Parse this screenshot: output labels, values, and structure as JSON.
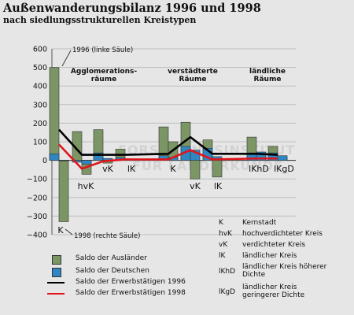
{
  "chart_data": {
    "type": "bar",
    "title": "Außenwanderungsbilanz 1996 und 1998",
    "subtitle": "nach siedlungsstrukturellen Kreistypen",
    "ylim": [
      -400,
      600
    ],
    "yticks": [
      600,
      500,
      400,
      300,
      200,
      100,
      0,
      -100,
      -200,
      -300,
      -400
    ],
    "ytick_labels": [
      "600",
      "500",
      "400",
      "300",
      "200",
      "100",
      "0",
      "−100",
      "−200",
      "−300",
      "−400"
    ],
    "categories": [
      "K",
      "hvK",
      "vK",
      "lK",
      "K",
      "vK",
      "lK",
      "lKhD",
      "lKgD"
    ],
    "category_labels_drawn": [
      "K",
      "hvK",
      "vK",
      "lK",
      "K",
      "vK",
      "lK",
      "lKhD",
      "lKgD"
    ],
    "groups": [
      {
        "name": "Agglomerations-räume",
        "label_line1": "Agglomerations-",
        "label_line2": "räume",
        "categories": [
          0,
          1,
          2,
          3
        ]
      },
      {
        "name": "verstädterte Räume",
        "label_line1": "verstädterte",
        "label_line2": "Räume",
        "categories": [
          4,
          5,
          6
        ]
      },
      {
        "name": "ländliche Räume",
        "label_line1": "ländliche",
        "label_line2": "Räume",
        "categories": [
          7,
          8
        ]
      }
    ],
    "series": [
      {
        "name": "Saldo der Ausländer",
        "kind": "bar",
        "year": 1996,
        "values": [
          500,
          155,
          165,
          60,
          180,
          205,
          110,
          125,
          75
        ]
      },
      {
        "name": "Saldo der Ausländer",
        "kind": "bar",
        "year": 1998,
        "values": [
          -330,
          -75,
          -15,
          5,
          100,
          -100,
          -90,
          20,
          20
        ]
      },
      {
        "name": "Saldo der Deutschen",
        "kind": "bar",
        "year": 1996,
        "values": [
          35,
          -10,
          40,
          15,
          25,
          75,
          65,
          40,
          40
        ]
      },
      {
        "name": "Saldo der Deutschen",
        "kind": "bar",
        "year": 1998,
        "values": [
          0,
          -20,
          10,
          5,
          15,
          55,
          20,
          45,
          25
        ]
      },
      {
        "name": "Saldo der Erwerbstätigen 1996",
        "kind": "line",
        "values": [
          165,
          30,
          30,
          30,
          35,
          125,
          35,
          35,
          30
        ]
      },
      {
        "name": "Saldo der Erwerbstätigen 1998",
        "kind": "line",
        "values": [
          85,
          -45,
          -5,
          5,
          5,
          55,
          5,
          10,
          10
        ]
      }
    ],
    "annotations": {
      "top": "1996 (linke Säule)",
      "bottom": "1998 (rechte Säule)"
    },
    "colors": {
      "auslaender": "#7b9565",
      "deutsche": "#2f86c2",
      "erw1996": "#000000",
      "erw1998": "#e0141a"
    },
    "grid": true
  },
  "legend": {
    "items": [
      {
        "label": "Saldo der Ausländer",
        "symbol": "square",
        "color": "#7b9565"
      },
      {
        "label": "Saldo der Deutschen",
        "symbol": "square",
        "color": "#2f86c2"
      },
      {
        "label": "Saldo der Erwerbstätigen 1996",
        "symbol": "line",
        "color": "#000000"
      },
      {
        "label": "Saldo der Erwerbstätigen 1998",
        "symbol": "line",
        "color": "#e0141a"
      }
    ]
  },
  "abbreviations": [
    {
      "code": "K",
      "text": "Kernstadt"
    },
    {
      "code": "hvK",
      "text": "hochverdichteter Kreis"
    },
    {
      "code": "vK",
      "text": "verdichteter Kreis"
    },
    {
      "code": "lK",
      "text": "ländlicher Kreis"
    },
    {
      "code": "lKhD",
      "text": "ländlicher Kreis höherer Dichte"
    },
    {
      "code": "lKgD",
      "text": "ländlicher Kreis geringerer Dichte"
    }
  ],
  "watermark": {
    "line1": "FORSCHUNGSINSTITUT",
    "line2": "FÜR LÄNDERKUNDE"
  }
}
